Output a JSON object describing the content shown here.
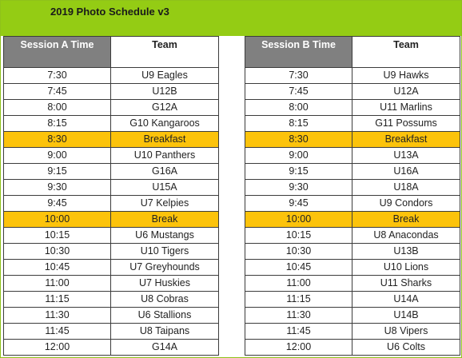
{
  "title": "2019 Photo Schedule v3",
  "headers": {
    "session_a": "Session A Time",
    "team_a": "Team",
    "session_b": "Session B Time",
    "team_b": "Team"
  },
  "colors": {
    "title_bar": "#94cc14",
    "header_dark": "#808080",
    "highlight": "#fcc30b"
  },
  "rows": [
    {
      "a_time": "7:30",
      "a_team": "U9 Eagles",
      "b_time": "7:30",
      "b_team": "U9 Hawks",
      "highlight": false
    },
    {
      "a_time": "7:45",
      "a_team": "U12B",
      "b_time": "7:45",
      "b_team": "U12A",
      "highlight": false
    },
    {
      "a_time": "8:00",
      "a_team": "G12A",
      "b_time": "8:00",
      "b_team": "U11 Marlins",
      "highlight": false
    },
    {
      "a_time": "8:15",
      "a_team": "G10 Kangaroos",
      "b_time": "8:15",
      "b_team": "G11 Possums",
      "highlight": false
    },
    {
      "a_time": "8:30",
      "a_team": "Breakfast",
      "b_time": "8:30",
      "b_team": "Breakfast",
      "highlight": true
    },
    {
      "a_time": "9:00",
      "a_team": "U10 Panthers",
      "b_time": "9:00",
      "b_team": "U13A",
      "highlight": false
    },
    {
      "a_time": "9:15",
      "a_team": "G16A",
      "b_time": "9:15",
      "b_team": "U16A",
      "highlight": false
    },
    {
      "a_time": "9:30",
      "a_team": "U15A",
      "b_time": "9:30",
      "b_team": "U18A",
      "highlight": false
    },
    {
      "a_time": "9:45",
      "a_team": "U7 Kelpies",
      "b_time": "9:45",
      "b_team": "U9 Condors",
      "highlight": false
    },
    {
      "a_time": "10:00",
      "a_team": "Break",
      "b_time": "10:00",
      "b_team": "Break",
      "highlight": true
    },
    {
      "a_time": "10:15",
      "a_team": "U6 Mustangs",
      "b_time": "10:15",
      "b_team": "U8 Anacondas",
      "highlight": false
    },
    {
      "a_time": "10:30",
      "a_team": "U10 Tigers",
      "b_time": "10:30",
      "b_team": "U13B",
      "highlight": false
    },
    {
      "a_time": "10:45",
      "a_team": "U7 Greyhounds",
      "b_time": "10:45",
      "b_team": "U10 Lions",
      "highlight": false
    },
    {
      "a_time": "11:00",
      "a_team": "U7 Huskies",
      "b_time": "11:00",
      "b_team": "U11 Sharks",
      "highlight": false
    },
    {
      "a_time": "11:15",
      "a_team": "U8 Cobras",
      "b_time": "11:15",
      "b_team": "U14A",
      "highlight": false
    },
    {
      "a_time": "11:30",
      "a_team": "U6 Stallions",
      "b_time": "11:30",
      "b_team": "U14B",
      "highlight": false
    },
    {
      "a_time": "11:45",
      "a_team": "U8 Taipans",
      "b_time": "11:45",
      "b_team": "U8 Vipers",
      "highlight": false
    },
    {
      "a_time": "12:00",
      "a_team": "G14A",
      "b_time": "12:00",
      "b_team": "U6 Colts",
      "highlight": false
    }
  ]
}
